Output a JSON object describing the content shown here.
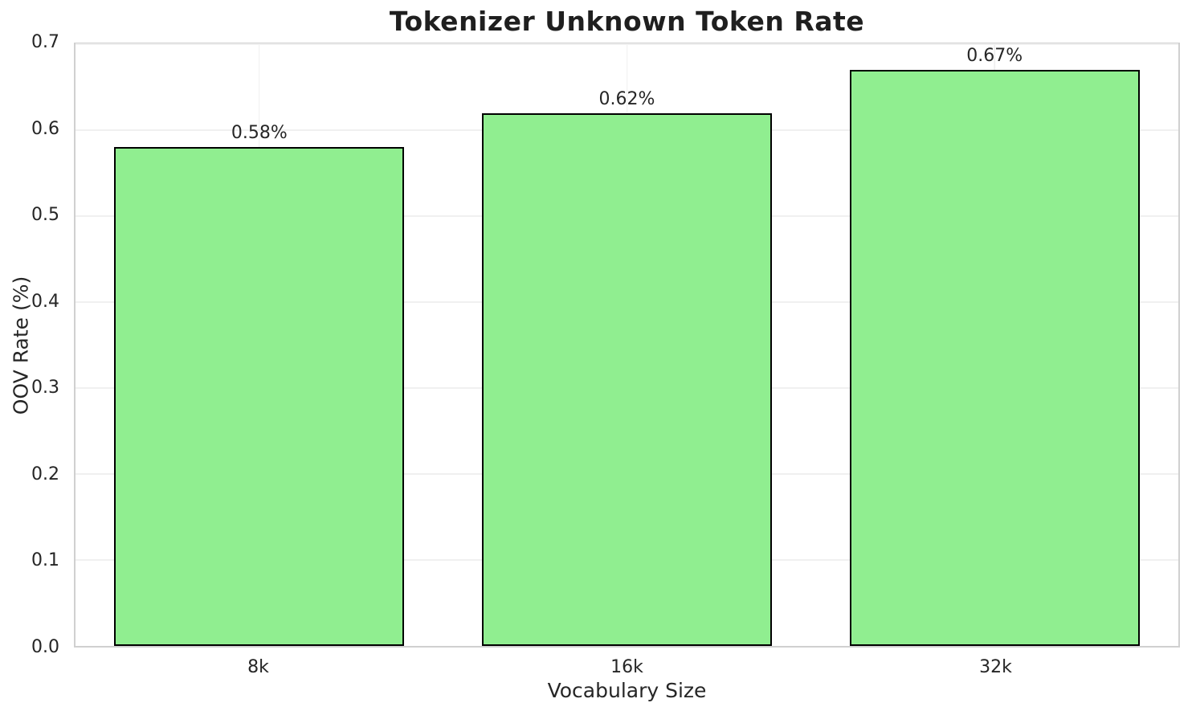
{
  "chart_data": {
    "type": "bar",
    "title": "Tokenizer Unknown Token Rate",
    "xlabel": "Vocabulary Size",
    "ylabel": "OOV Rate (%)",
    "categories": [
      "8k",
      "16k",
      "32k"
    ],
    "values": [
      0.58,
      0.62,
      0.67
    ],
    "value_labels": [
      "0.58%",
      "0.62%",
      "0.67%"
    ],
    "ylim": [
      0.0,
      0.7
    ],
    "yticks": [
      "0.0",
      "0.1",
      "0.2",
      "0.3",
      "0.4",
      "0.5",
      "0.6",
      "0.7"
    ],
    "grid": "both",
    "legend_position": "none",
    "bar_color": "#90EE90",
    "bar_edge_color": "#000000",
    "grid_color": "#f0f0f0",
    "spine_color": "#d0d0d0",
    "text_color": "#262626"
  }
}
